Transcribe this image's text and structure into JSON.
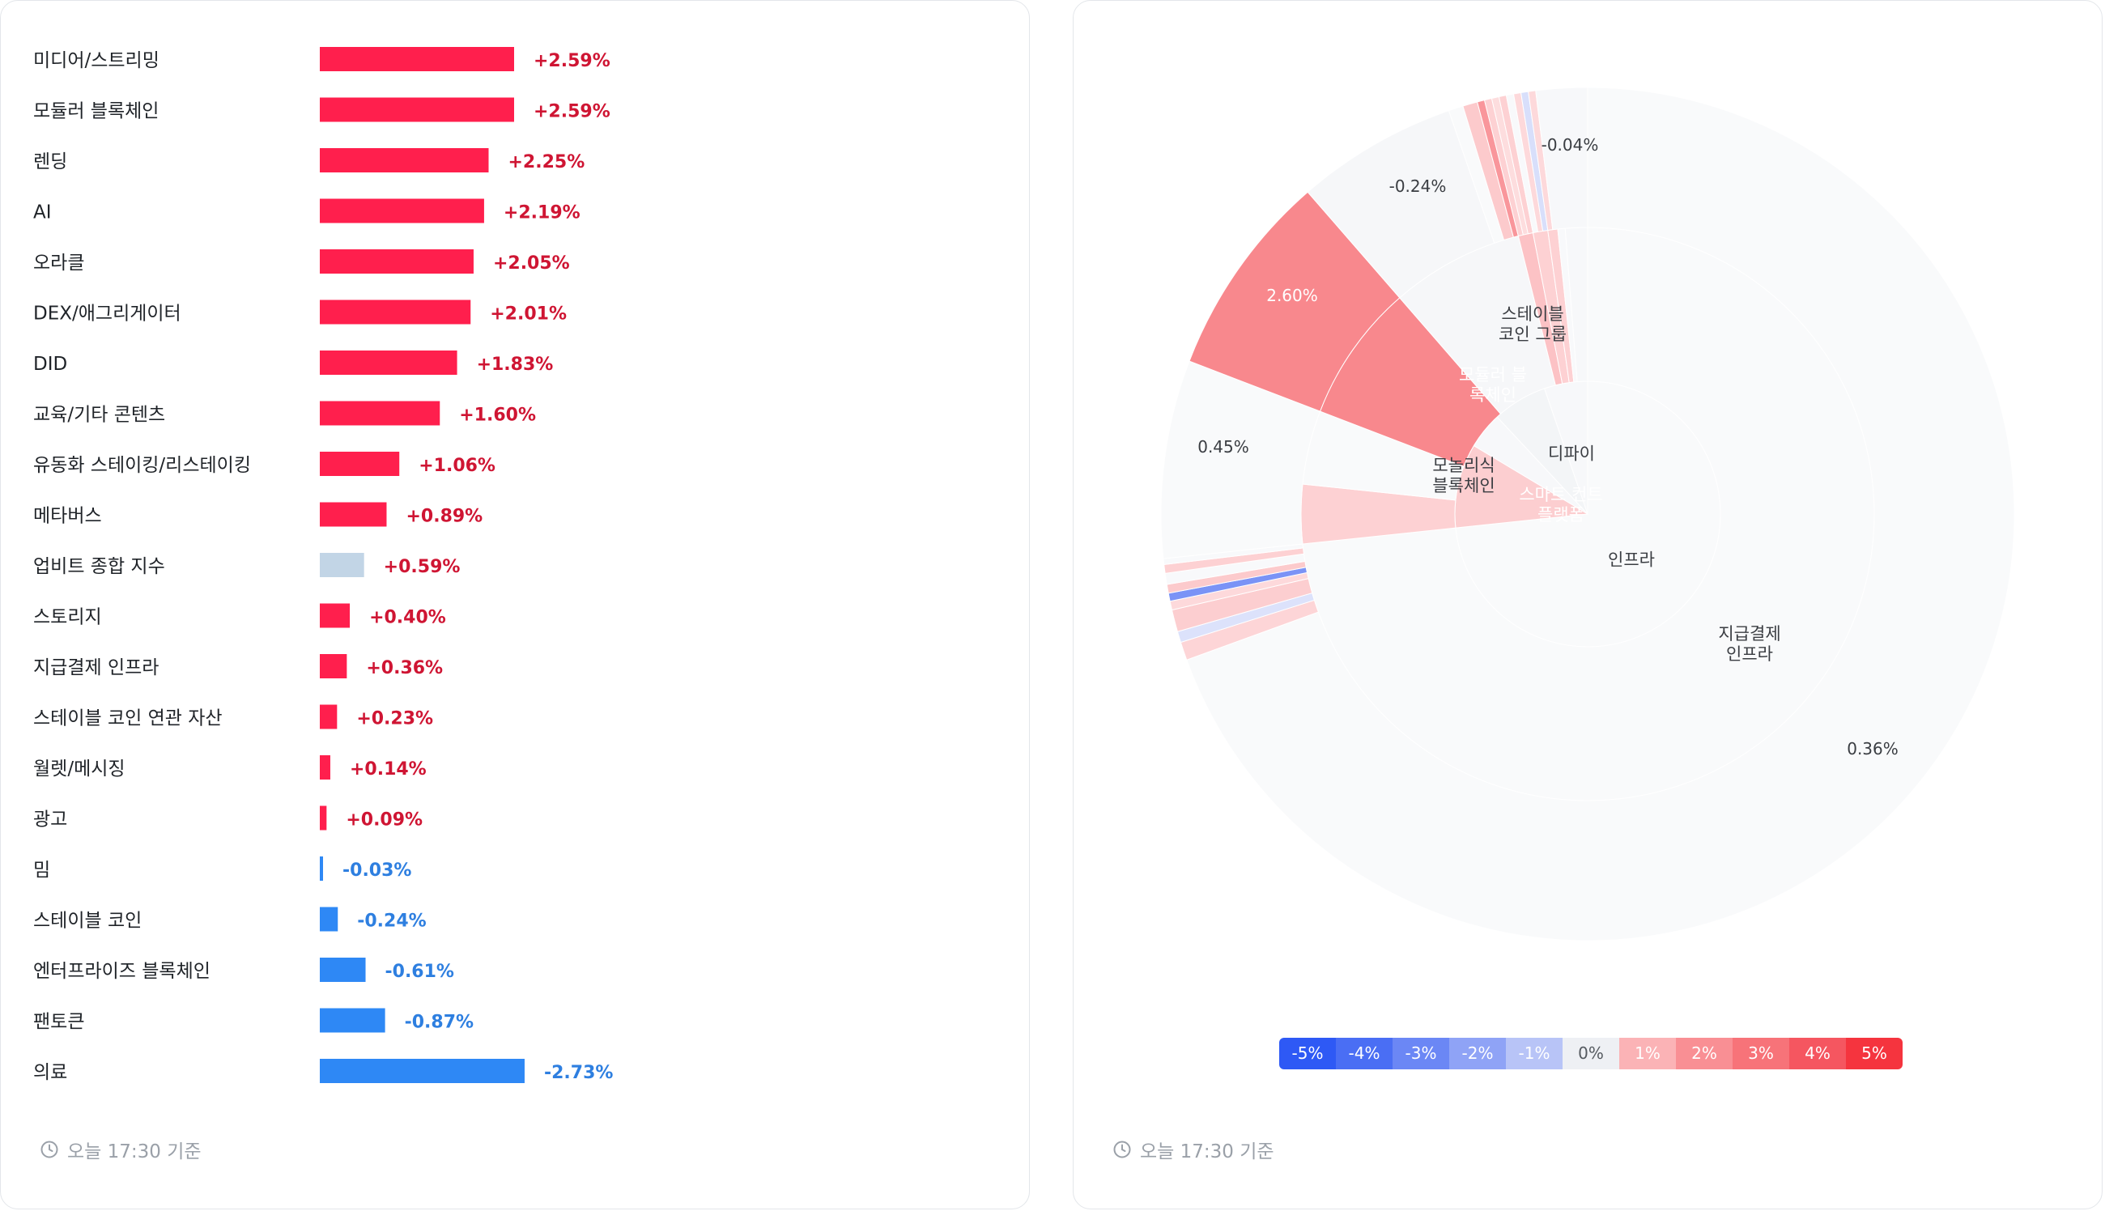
{
  "timestamp_label": "오늘 17:30 기준",
  "colors": {
    "positive_bar": "#ff1f4d",
    "negative_bar": "#2e88f5",
    "index_bar": "#c2d5e6",
    "positive_text": "#cf1533",
    "negative_text": "#2e7fe0"
  },
  "chart_data": [
    {
      "type": "bar",
      "orientation": "horizontal",
      "categories": [
        "미디어/스트리밍",
        "모듈러 블록체인",
        "렌딩",
        "AI",
        "오라클",
        "DEX/애그리게이터",
        "DID",
        "교육/기타 콘텐츠",
        "유동화 스테이킹/리스테이킹",
        "메타버스",
        "업비트 종합 지수",
        "스토리지",
        "지급결제 인프라",
        "스테이블 코인 연관 자산",
        "월렛/메시징",
        "광고",
        "밈",
        "스테이블 코인",
        "엔터프라이즈 블록체인",
        "팬토큰",
        "의료"
      ],
      "values": [
        2.59,
        2.59,
        2.25,
        2.19,
        2.05,
        2.01,
        1.83,
        1.6,
        1.06,
        0.89,
        0.59,
        0.4,
        0.36,
        0.23,
        0.14,
        0.09,
        -0.03,
        -0.24,
        -0.61,
        -0.87,
        -2.73
      ],
      "value_labels": [
        "+2.59%",
        "+2.59%",
        "+2.25%",
        "+2.19%",
        "+2.05%",
        "+2.01%",
        "+1.83%",
        "+1.60%",
        "+1.06%",
        "+0.89%",
        "+0.59%",
        "+0.40%",
        "+0.36%",
        "+0.23%",
        "+0.14%",
        "+0.09%",
        "-0.03%",
        "-0.24%",
        "-0.61%",
        "-0.87%",
        "-2.73%"
      ],
      "highlight_category": "업비트 종합 지수",
      "title": "",
      "xlabel": "",
      "ylabel": "",
      "grid": false
    },
    {
      "type": "sunburst",
      "title": "",
      "rings": {
        "inner": [
          {
            "label": "인프라",
            "value": 73.4,
            "change": 0.36
          },
          {
            "label": "스마트 컨트랙트 플랫폼",
            "value": 10.3,
            "change": 1.3
          },
          {
            "label": "디파이",
            "value": 4.4,
            "change": 0.3
          },
          {
            "label": "(unlabeled)",
            "value": 11.9,
            "change": 0.7
          }
        ],
        "middle": [
          {
            "label": "지급결제 인프라",
            "value": 73.4,
            "change": 0.36
          },
          {
            "label": "모놀리식 블록체인",
            "value": 5.8,
            "change": 0.45
          },
          {
            "label": "모듈러 블록체인",
            "value": 5.2,
            "change": 2.6
          },
          {
            "label": "스테이블 코인 그룹",
            "value": 4.8,
            "change": -0.24
          },
          {
            "label": "(unlabeled)",
            "value": 10.8,
            "change": 0.8
          }
        ],
        "outer_value_labels": [
          {
            "label": "0.36%",
            "change": 0.36
          },
          {
            "label": "0.45%",
            "change": 0.45
          },
          {
            "label": "2.60%",
            "change": 2.6
          },
          {
            "label": "-0.24%",
            "change": -0.24
          },
          {
            "label": "-0.04%",
            "change": -0.04
          }
        ]
      },
      "color_scale": {
        "labels": [
          "-5%",
          "-4%",
          "-3%",
          "-2%",
          "-1%",
          "0%",
          "1%",
          "2%",
          "3%",
          "4%",
          "5%"
        ],
        "values": [
          -5,
          -4,
          -3,
          -2,
          -1,
          0,
          1,
          2,
          3,
          4,
          5
        ],
        "colors": [
          "#2e59f5",
          "#4a6ef4",
          "#6b87f5",
          "#8fa3f6",
          "#b8c4f7",
          "#eef0f4",
          "#fbb3b6",
          "#f98f94",
          "#f77379",
          "#f55660",
          "#f5343e"
        ]
      }
    }
  ]
}
